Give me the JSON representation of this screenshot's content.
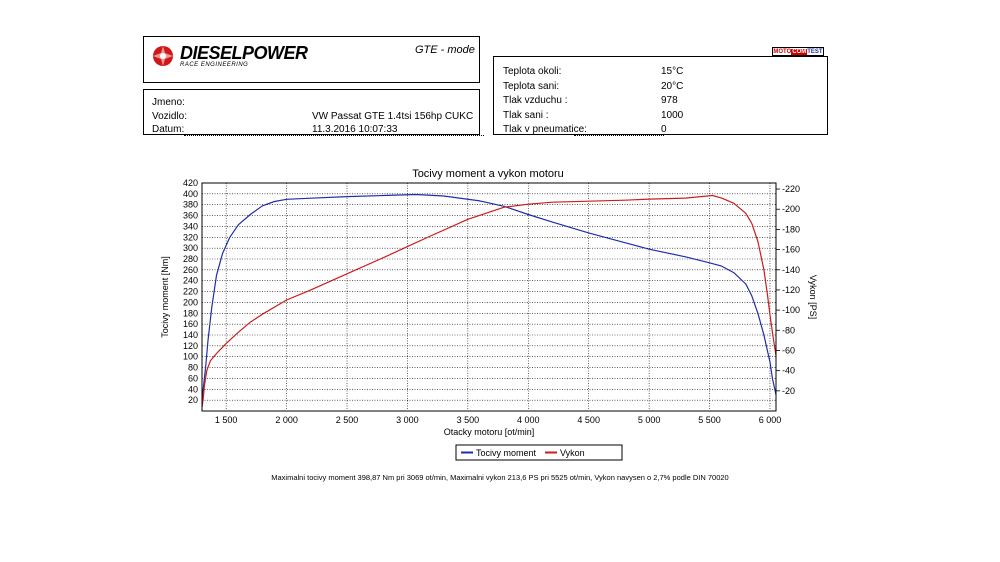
{
  "header": {
    "logo_text": "DIESELPOWER",
    "logo_subtext": "RACE ENGINEERING",
    "mode": "GTE - mode",
    "badge": {
      "moto": "MOTO",
      "com": "COM",
      "test": "TEST"
    }
  },
  "vehicle_info": [
    {
      "label": "Jmeno:",
      "value": ""
    },
    {
      "label": "Vozidlo:",
      "value": "VW Passat GTE 1.4tsi 156hp CUKC"
    },
    {
      "label": "Datum:",
      "value": "11.3.2016 10:07:33"
    }
  ],
  "conditions": [
    {
      "label": "Teplota okoli:",
      "value": "15°C"
    },
    {
      "label": "Teplota sani:",
      "value": "20°C"
    },
    {
      "label": "Tlak vzduchu :",
      "value": "978"
    },
    {
      "label": "Tlak sani :",
      "value": "1000"
    },
    {
      "label": "Tlak v pneumatice:",
      "value": "0"
    }
  ],
  "colors": {
    "torque": "#1e2ea8",
    "power": "#c81e1e",
    "grid": "#000000"
  },
  "chart_data": {
    "type": "line",
    "title": "Tocivy moment a vykon motoru",
    "xlabel": "Otacky motoru [ot/min]",
    "ylabel": "Tocivy moment [Nm]",
    "y2label": "Vykon [PS]",
    "xlim": [
      1300,
      6050
    ],
    "ylim": [
      0,
      420
    ],
    "y2lim": [
      0,
      226
    ],
    "x_ticks": [
      1500,
      2000,
      2500,
      3000,
      3500,
      4000,
      4500,
      5000,
      5500,
      6000
    ],
    "x_tick_labels": [
      "1 500",
      "2 000",
      "2 500",
      "3 000",
      "3 500",
      "4 000",
      "4 500",
      "5 000",
      "5 500",
      "6 000"
    ],
    "y_ticks": [
      20,
      40,
      60,
      80,
      100,
      120,
      140,
      160,
      180,
      200,
      220,
      240,
      260,
      280,
      300,
      320,
      340,
      360,
      380,
      400,
      420
    ],
    "y2_ticks": [
      20,
      40,
      60,
      80,
      100,
      120,
      140,
      160,
      180,
      200,
      220
    ],
    "grid": true,
    "legend_position": "bottom",
    "series": [
      {
        "name": "Tocivy moment",
        "axis": "left",
        "x": [
          1300,
          1310,
          1330,
          1350,
          1380,
          1420,
          1470,
          1530,
          1600,
          1700,
          1800,
          1900,
          2000,
          2200,
          2500,
          2800,
          3069,
          3300,
          3600,
          3800,
          4000,
          4200,
          4500,
          4800,
          5000,
          5300,
          5500,
          5600,
          5700,
          5800,
          5850,
          5900,
          5950,
          6000,
          6020,
          6040,
          6050
        ],
        "values": [
          20,
          40,
          80,
          130,
          190,
          250,
          290,
          320,
          343,
          362,
          378,
          386,
          390,
          392,
          395,
          397,
          398.9,
          396,
          387,
          377,
          362,
          348,
          328,
          310,
          298,
          284,
          273,
          267,
          255,
          234,
          212,
          180,
          140,
          90,
          60,
          40,
          30
        ]
      },
      {
        "name": "Vykon",
        "axis": "right",
        "x": [
          1300,
          1310,
          1320,
          1340,
          1370,
          1420,
          1500,
          1600,
          1700,
          1800,
          2000,
          2200,
          2500,
          2800,
          3000,
          3200,
          3500,
          3800,
          4000,
          4200,
          4500,
          4800,
          5000,
          5300,
          5525,
          5600,
          5700,
          5800,
          5850,
          5900,
          5950,
          5980,
          6000,
          6030,
          6050
        ],
        "values": [
          4,
          12,
          25,
          40,
          50,
          57,
          67,
          78,
          88,
          96,
          110,
          120,
          136,
          152,
          163,
          174,
          190,
          202,
          205,
          207,
          208,
          209,
          210,
          211,
          213.6,
          211,
          206,
          196,
          186,
          168,
          140,
          115,
          95,
          70,
          55
        ]
      }
    ]
  },
  "footnote": "Maximalni tocivy moment 398,87 Nm pri 3069 ot/min,  Maximalni vykon 213,6 PS pri 5525 ot/min,  Vykon navysen o 2,7% podle DIN 70020"
}
